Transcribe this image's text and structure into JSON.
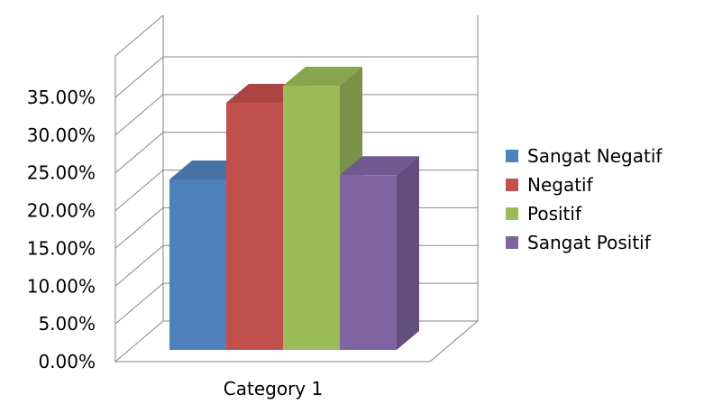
{
  "chart_data": {
    "type": "bar",
    "categories": [
      "Category 1"
    ],
    "series": [
      {
        "name": "Sangat Negatif",
        "values": [
          0.2
        ],
        "color": "#4F81BD"
      },
      {
        "name": "Negatif",
        "values": [
          0.29
        ],
        "color": "#C0504D"
      },
      {
        "name": "Positif",
        "values": [
          0.31
        ],
        "color": "#9BBB59"
      },
      {
        "name": "Sangat Positif",
        "values": [
          0.205
        ],
        "color": "#8064A2"
      }
    ],
    "ylim": [
      0,
      0.35
    ],
    "yticks": [
      "0.00%",
      "5.00%",
      "10.00%",
      "15.00%",
      "20.00%",
      "25.00%",
      "30.00%",
      "35.00%"
    ],
    "grid": true,
    "three_d": true,
    "legend_position": "right"
  }
}
